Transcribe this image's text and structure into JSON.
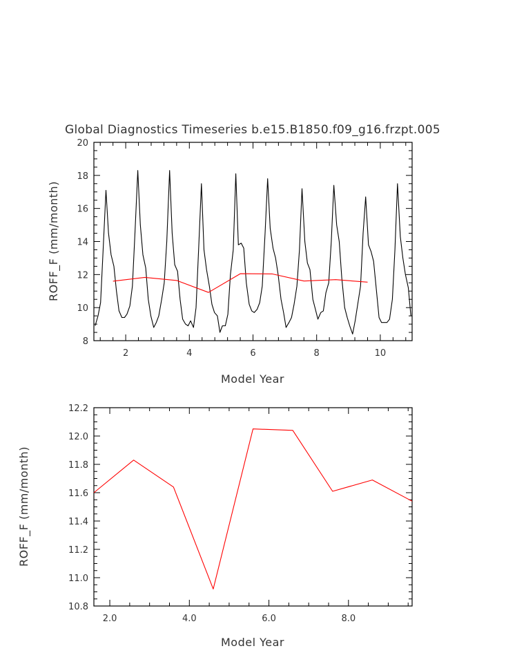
{
  "chart_data": [
    {
      "type": "line",
      "title": "Global Diagnostics Timeseries b.e15.B1850.f09_g16.frzpt.005",
      "xlabel": "Model Year",
      "ylabel": "ROFF_F (mm/month)",
      "xlim": [
        1,
        11
      ],
      "ylim": [
        8,
        20
      ],
      "xticks": [
        "2",
        "4",
        "6",
        "8",
        "10"
      ],
      "yticks": [
        "8",
        "10",
        "12",
        "14",
        "16",
        "18",
        "20"
      ],
      "series": [
        {
          "color": "#000000",
          "x": [
            1.04,
            1.13,
            1.21,
            1.29,
            1.38,
            1.46,
            1.54,
            1.63,
            1.71,
            1.79,
            1.88,
            1.96,
            2.04,
            2.13,
            2.21,
            2.29,
            2.38,
            2.46,
            2.54,
            2.63,
            2.71,
            2.79,
            2.88,
            2.96,
            3.04,
            3.13,
            3.21,
            3.29,
            3.38,
            3.46,
            3.54,
            3.63,
            3.71,
            3.79,
            3.88,
            3.96,
            4.04,
            4.13,
            4.21,
            4.29,
            4.38,
            4.46,
            4.54,
            4.63,
            4.71,
            4.79,
            4.88,
            4.96,
            5.04,
            5.13,
            5.21,
            5.29,
            5.38,
            5.46,
            5.54,
            5.63,
            5.71,
            5.79,
            5.88,
            5.96,
            6.04,
            6.13,
            6.21,
            6.29,
            6.38,
            6.46,
            6.54,
            6.63,
            6.71,
            6.79,
            6.88,
            6.96,
            7.04,
            7.13,
            7.21,
            7.29,
            7.38,
            7.46,
            7.54,
            7.63,
            7.71,
            7.79,
            7.88,
            7.96,
            8.04,
            8.13,
            8.21,
            8.29,
            8.38,
            8.46,
            8.54,
            8.63,
            8.71,
            8.79,
            8.88,
            8.96,
            9.04,
            9.13,
            9.21,
            9.29,
            9.38,
            9.46,
            9.54,
            9.63,
            9.71,
            9.79,
            9.88,
            9.96,
            10.04,
            10.13,
            10.21,
            10.29,
            10.38,
            10.46,
            10.54,
            10.63,
            10.71,
            10.79,
            10.88,
            10.96
          ],
          "y": [
            8.9,
            9.5,
            10.3,
            13.5,
            17.1,
            14.5,
            13.2,
            12.5,
            11.0,
            9.8,
            9.4,
            9.4,
            9.6,
            10.1,
            11.3,
            14.5,
            18.3,
            15.0,
            13.2,
            12.4,
            10.5,
            9.5,
            8.8,
            9.1,
            9.5,
            10.5,
            11.5,
            14.0,
            18.3,
            14.5,
            12.6,
            12.2,
            10.5,
            9.3,
            9.0,
            8.9,
            9.2,
            8.8,
            10.0,
            13.5,
            17.5,
            13.5,
            12.3,
            11.3,
            10.2,
            9.7,
            9.5,
            8.5,
            8.9,
            8.9,
            9.6,
            12.0,
            13.5,
            18.1,
            13.8,
            13.9,
            13.6,
            11.5,
            10.2,
            9.8,
            9.7,
            9.9,
            10.3,
            11.3,
            14.5,
            17.8,
            14.8,
            13.6,
            13.0,
            12.0,
            10.5,
            9.7,
            8.8,
            9.1,
            9.4,
            10.2,
            11.3,
            13.5,
            17.2,
            14.0,
            12.7,
            12.3,
            10.5,
            9.9,
            9.3,
            9.7,
            9.8,
            10.9,
            11.5,
            14.0,
            17.4,
            15.0,
            14.0,
            11.8,
            10.0,
            9.4,
            8.9,
            8.4,
            9.2,
            10.2,
            11.3,
            14.5,
            16.7,
            13.8,
            13.4,
            12.8,
            11.0,
            9.4,
            9.1,
            9.1,
            9.1,
            9.3,
            10.5,
            13.5,
            17.5,
            14.3,
            13.0,
            12.0,
            11.2,
            9.5
          ]
        },
        {
          "color": "#ff0000",
          "x": [
            1.6,
            2.6,
            3.6,
            4.6,
            5.6,
            6.6,
            7.6,
            8.6,
            9.6
          ],
          "y": [
            11.6,
            11.83,
            11.64,
            10.92,
            12.05,
            12.04,
            11.61,
            11.69,
            11.54
          ]
        }
      ]
    },
    {
      "type": "line",
      "xlabel": "Model Year",
      "ylabel": "ROFF_F (mm/month)",
      "xlim": [
        1.6,
        9.6
      ],
      "ylim": [
        10.8,
        12.2
      ],
      "xticks": [
        "2.0",
        "4.0",
        "6.0",
        "8.0"
      ],
      "yticks": [
        "10.8",
        "11.0",
        "11.2",
        "11.4",
        "11.6",
        "11.8",
        "12.0",
        "12.2"
      ],
      "series": [
        {
          "color": "#ff0000",
          "x": [
            1.6,
            2.6,
            3.6,
            4.6,
            5.6,
            6.6,
            7.6,
            8.6,
            9.6
          ],
          "y": [
            11.6,
            11.83,
            11.64,
            10.92,
            12.05,
            12.04,
            11.61,
            11.69,
            11.54
          ]
        }
      ]
    }
  ]
}
